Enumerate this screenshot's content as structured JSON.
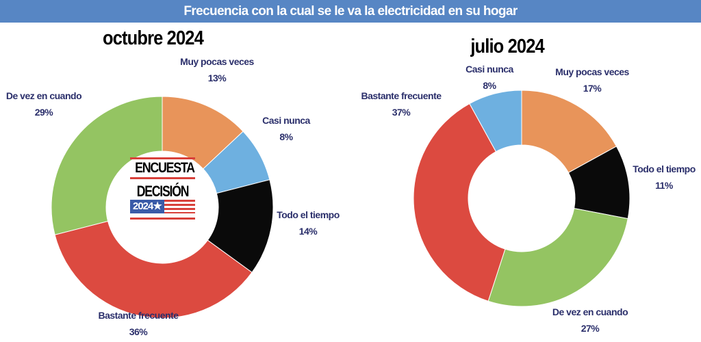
{
  "header": {
    "title": "Frecuencia con la cual se le va la electricidad en su hogar"
  },
  "logo": {
    "line1": "ENCUESTA",
    "line2": "DECISIÓN",
    "line3": "2024★"
  },
  "colors": {
    "Muy pocas veces": "#e8945a",
    "Casi nunca": "#6eb0e0",
    "Todo el tiempo": "#0a0a0a",
    "Bastante frecuente": "#dc4a40",
    "De vez en cuando": "#94c462",
    "title_bar": "#5786c4",
    "label_text": "#2b2f6b"
  },
  "chart_data": [
    {
      "type": "pie",
      "subtype": "donut",
      "title": "octubre 2024",
      "categories": [
        "Muy pocas veces",
        "Casi nunca",
        "Todo el tiempo",
        "Bastante frecuente",
        "De vez en cuando"
      ],
      "values": [
        13,
        8,
        14,
        36,
        29
      ],
      "labels": [
        "13%",
        "8%",
        "14%",
        "36%",
        "29%"
      ],
      "start": "top",
      "direction": "clockwise"
    },
    {
      "type": "pie",
      "subtype": "donut",
      "title": "julio 2024",
      "categories": [
        "Muy pocas veces",
        "Todo el tiempo",
        "De vez en cuando",
        "Bastante frecuente",
        "Casi nunca"
      ],
      "values": [
        17,
        11,
        27,
        37,
        8
      ],
      "labels": [
        "17%",
        "11%",
        "27%",
        "37%",
        "8%"
      ],
      "start": "top",
      "direction": "clockwise"
    }
  ]
}
